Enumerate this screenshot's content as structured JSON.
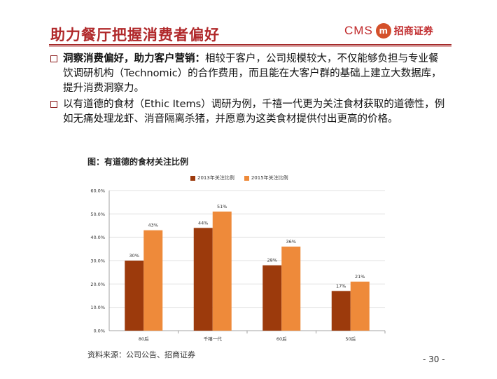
{
  "header": {
    "title": "助力餐厅把握消费者偏好",
    "logo_latin": "CMS",
    "logo_mark": "m",
    "logo_cn": "招商证券",
    "title_color": "#b0282a"
  },
  "bullets": [
    {
      "bold": "洞察消费偏好，助力客户营销：",
      "text": "相较于客户，公司规模较大，不仅能够负担与专业餐饮调研机构（Technomic）的合作费用，而且能在大客户群的基础上建立大数据库，提升消费洞察力。"
    },
    {
      "bold": "",
      "text": "以有道德的食材（Ethic Items）调研为例，千禧一代更为关注食材获取的道德性，例如无痛处理龙虾、消音隔离杀猪，并愿意为这类食材提供付出更高的价格。"
    }
  ],
  "chart_data": {
    "type": "bar",
    "title": "图：有道德的食材关注比例",
    "categories": [
      "80后",
      "千禧一代",
      "60后",
      "50后"
    ],
    "series": [
      {
        "name": "2013年关注比例",
        "values": [
          30,
          44,
          28,
          17
        ],
        "labels": [
          "30%",
          "44%",
          "28%",
          "17%"
        ],
        "color": "#9c3a0c"
      },
      {
        "name": "2015年关注比例",
        "values": [
          43,
          51,
          36,
          21
        ],
        "labels": [
          "43%",
          "51%",
          "36%",
          "21%"
        ],
        "color": "#ee8a3a"
      }
    ],
    "yticks": [
      "0.0%",
      "10.0%",
      "20.0%",
      "30.0%",
      "40.0%",
      "50.0%",
      "60.0%"
    ],
    "ylim": [
      0,
      60
    ],
    "grid": true,
    "legend_position": "top"
  },
  "source": "资料来源：公司公告、招商证券",
  "page_number": "- 30 -"
}
